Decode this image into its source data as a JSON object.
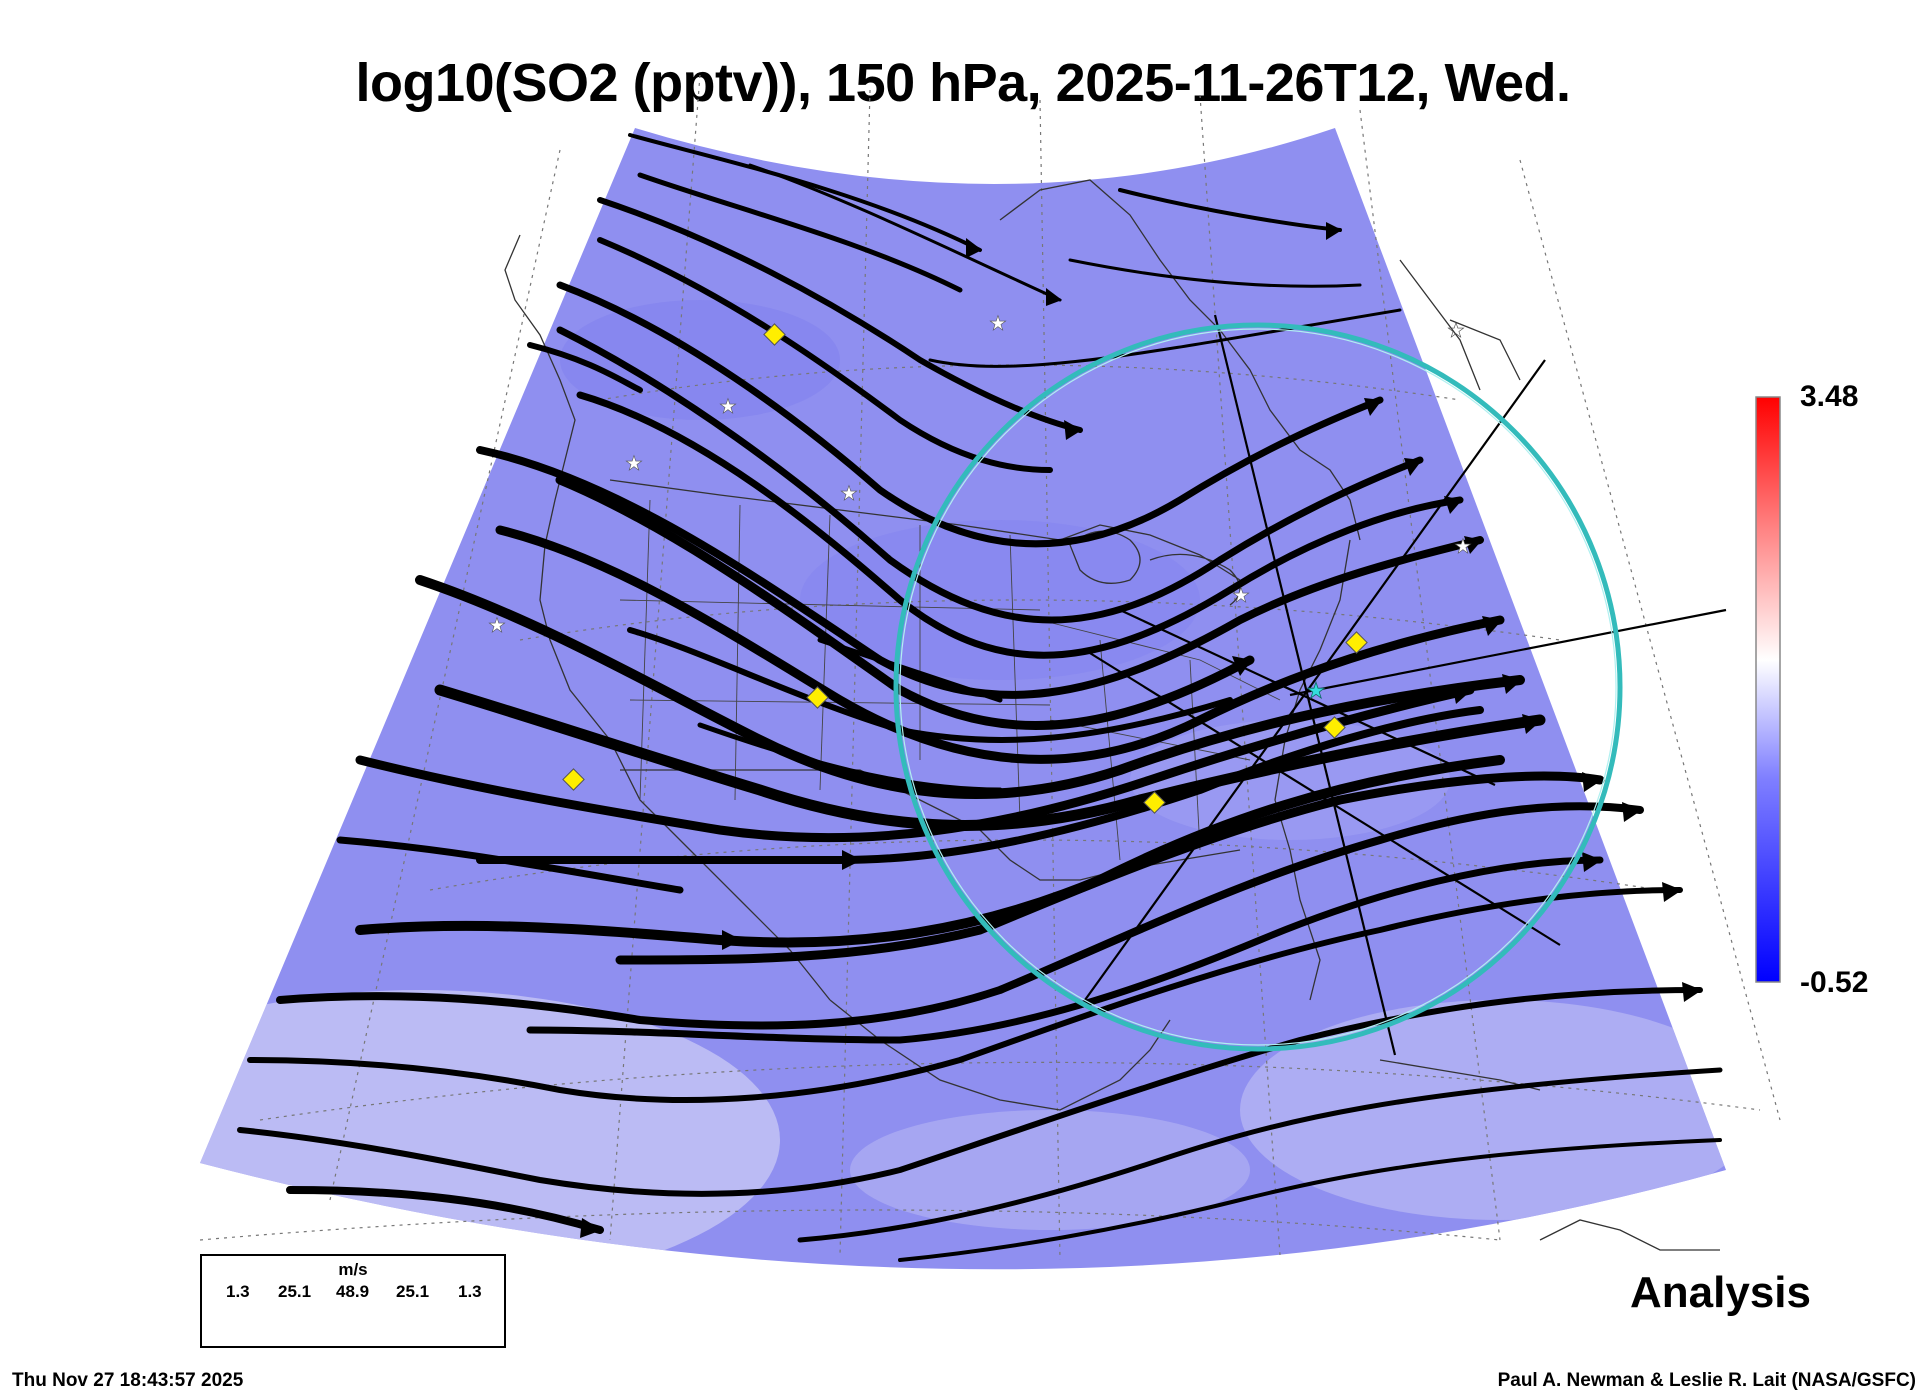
{
  "title": "log10(SO2 (pptv)), 150 hPa, 2025-11-26T12, Wed.",
  "colorbar": {
    "max_label": "3.48",
    "min_label": "-0.52",
    "colors": [
      "#0000ff",
      "#7f7fff",
      "#ffffff",
      "#ff7f7f",
      "#ff0000"
    ]
  },
  "field_color": "#8f8ff0",
  "ring_color": "#33bbbb",
  "marker_color": "#ffee00",
  "wind_legend": {
    "unit": "m/s",
    "values": [
      "1.3",
      "25.1",
      "48.9",
      "25.1",
      "1.3"
    ]
  },
  "label_analysis": "Analysis",
  "timestamp": "Thu Nov 27 18:43:57 2025",
  "credit": "Paul A. Newman & Leslie R. Lait (NASA/GSFC)",
  "icons": [
    "yellow-diamond-marker",
    "white-star-marker",
    "cyan-star-marker",
    "streamline-arrow"
  ]
}
